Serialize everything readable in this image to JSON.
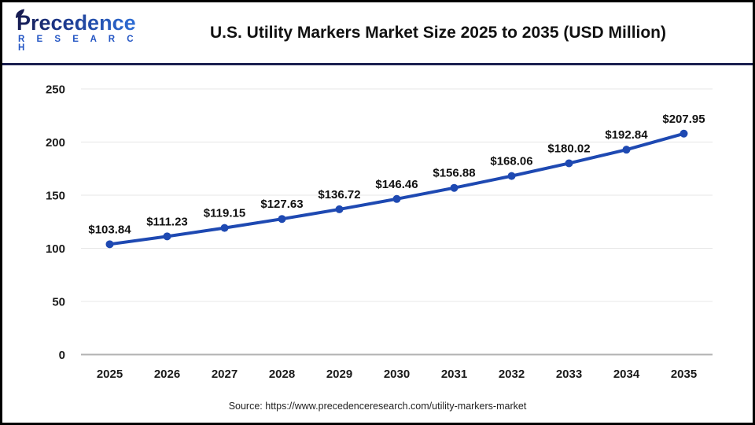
{
  "header": {
    "logo": {
      "line1": "Precedence",
      "line2": "R E S E A R C H"
    },
    "title": "U.S. Utility Markers Market Size 2025 to 2035 (USD Million)"
  },
  "chart_data": {
    "type": "line",
    "title": "U.S. Utility Markers Market Size 2025 to 2035 (USD Million)",
    "categories": [
      "2025",
      "2026",
      "2027",
      "2028",
      "2029",
      "2030",
      "2031",
      "2032",
      "2033",
      "2034",
      "2035"
    ],
    "values": [
      103.84,
      111.23,
      119.15,
      127.63,
      136.72,
      146.46,
      156.88,
      168.06,
      180.02,
      192.84,
      207.95
    ],
    "data_label_prefix": "$",
    "xlabel": "",
    "ylabel": "",
    "ylim": [
      0,
      250
    ],
    "yticks": [
      0,
      50,
      100,
      150,
      200,
      250
    ],
    "grid": true,
    "legend": "none",
    "colors": {
      "line": "#1e49b2",
      "marker": "#1e49b2",
      "gridline": "#e7e7e7",
      "axis_baseline": "#b3b3b3",
      "tick_text": "#1a1a1a",
      "separator_navy": "#1b2050",
      "logo_blue": "#2456c4"
    }
  },
  "footer": {
    "source": "Source: https://www.precedenceresearch.com/utility-markers-market"
  }
}
